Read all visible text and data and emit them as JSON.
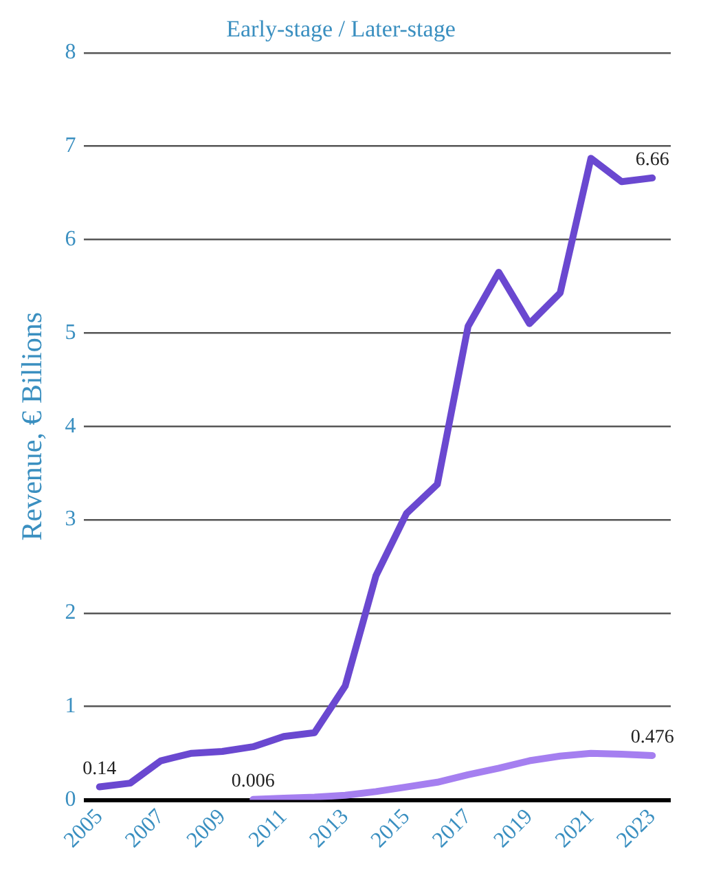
{
  "chart_data": {
    "type": "line",
    "title": "Early-stage / Later-stage",
    "ylabel": "Revenue, € Billions",
    "xlim": [
      2004.5,
      2023.6
    ],
    "xticks": [
      2005,
      2007,
      2009,
      2011,
      2013,
      2015,
      2017,
      2019,
      2021,
      2023
    ],
    "ylim": [
      0,
      8
    ],
    "yticks": [
      0,
      1,
      2,
      3,
      4,
      5,
      6,
      7,
      8
    ],
    "grid": "y",
    "legend": false,
    "marker": "none",
    "line_style": "solid",
    "series": [
      {
        "color": "#6a48d0",
        "x": [
          2005,
          2006,
          2007,
          2008,
          2009,
          2010,
          2011,
          2012,
          2013,
          2014,
          2015,
          2016,
          2017,
          2018,
          2019,
          2020,
          2021,
          2022,
          2023
        ],
        "values": [
          0.14,
          0.18,
          0.42,
          0.5,
          0.52,
          0.57,
          0.68,
          0.72,
          1.22,
          2.4,
          3.07,
          3.38,
          5.07,
          5.65,
          5.1,
          5.43,
          6.87,
          6.62,
          6.66
        ],
        "value_labels": [
          "0.14",
          null,
          null,
          null,
          null,
          null,
          null,
          null,
          null,
          null,
          null,
          null,
          null,
          null,
          null,
          null,
          null,
          null,
          "6.66"
        ]
      },
      {
        "color": "#a57ff0",
        "x": [
          2010,
          2011,
          2012,
          2013,
          2014,
          2015,
          2016,
          2017,
          2018,
          2019,
          2020,
          2021,
          2022,
          2023
        ],
        "values": [
          0.006,
          0.02,
          0.03,
          0.05,
          0.09,
          0.14,
          0.19,
          0.27,
          0.34,
          0.42,
          0.47,
          0.5,
          0.49,
          0.476
        ],
        "value_labels": [
          "0.006",
          null,
          null,
          null,
          null,
          null,
          null,
          null,
          null,
          null,
          null,
          null,
          null,
          "0.476"
        ]
      }
    ]
  }
}
